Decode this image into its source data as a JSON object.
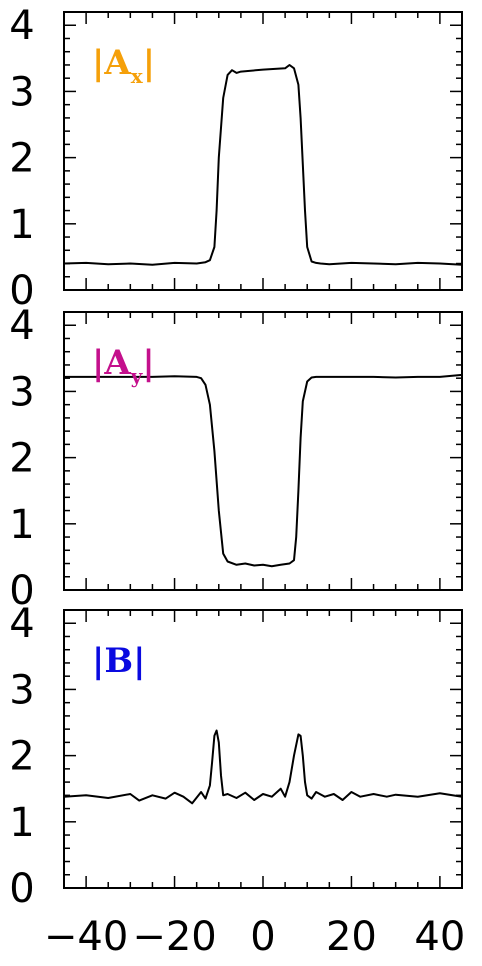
{
  "chart_data": [
    {
      "type": "line",
      "label_main": "|A",
      "label_sub": "x",
      "label_close": "|",
      "label_color": "#f5a00a",
      "ylim": [
        0,
        4.2
      ],
      "xlim": [
        -45,
        45
      ],
      "yticks": [
        "0",
        "1",
        "2",
        "3",
        "4"
      ],
      "series": [
        {
          "color": "#000000",
          "x": [
            -45,
            -40,
            -35,
            -30,
            -25,
            -20,
            -15,
            -13,
            -12,
            -11,
            -10.5,
            -10,
            -9,
            -8,
            -7,
            -6,
            -5,
            0,
            5,
            6,
            7,
            8,
            8.5,
            9,
            9.5,
            10,
            11,
            12,
            13,
            15,
            20,
            25,
            30,
            35,
            40,
            45
          ],
          "y": [
            0.4,
            0.41,
            0.39,
            0.4,
            0.38,
            0.41,
            0.4,
            0.42,
            0.45,
            0.65,
            1.2,
            2.0,
            2.9,
            3.25,
            3.32,
            3.28,
            3.3,
            3.33,
            3.35,
            3.4,
            3.35,
            3.1,
            2.6,
            1.9,
            1.2,
            0.65,
            0.43,
            0.41,
            0.4,
            0.39,
            0.41,
            0.4,
            0.39,
            0.41,
            0.4,
            0.38
          ]
        }
      ]
    },
    {
      "type": "line",
      "label_main": "|A",
      "label_sub": "y",
      "label_close": "|",
      "label_color": "#c4108c",
      "ylim": [
        0,
        4.2
      ],
      "xlim": [
        -45,
        45
      ],
      "yticks": [
        "0",
        "1",
        "2",
        "3",
        "4"
      ],
      "series": [
        {
          "color": "#000000",
          "x": [
            -45,
            -40,
            -35,
            -30,
            -25,
            -20,
            -15,
            -14,
            -13,
            -12,
            -11,
            -10,
            -9,
            -8,
            -6,
            -4,
            -2,
            0,
            2,
            4,
            6,
            7,
            7.5,
            8,
            8.5,
            9,
            10,
            11,
            12,
            15,
            20,
            25,
            30,
            35,
            40,
            45
          ],
          "y": [
            3.22,
            3.22,
            3.22,
            3.22,
            3.22,
            3.23,
            3.22,
            3.2,
            3.1,
            2.8,
            2.1,
            1.2,
            0.55,
            0.43,
            0.38,
            0.4,
            0.37,
            0.38,
            0.36,
            0.38,
            0.4,
            0.45,
            0.8,
            1.5,
            2.3,
            2.85,
            3.15,
            3.21,
            3.22,
            3.22,
            3.22,
            3.22,
            3.21,
            3.22,
            3.22,
            3.25
          ]
        }
      ]
    },
    {
      "type": "line",
      "label_main": "|B|",
      "label_sub": "",
      "label_close": "",
      "label_color": "#0a0ae0",
      "ylim": [
        0,
        4.2
      ],
      "xlim": [
        -45,
        45
      ],
      "yticks": [
        "0",
        "1",
        "2",
        "3",
        "4"
      ],
      "series": [
        {
          "color": "#000000",
          "x": [
            -45,
            -40,
            -35,
            -30,
            -28,
            -25,
            -22,
            -20,
            -18,
            -16,
            -14,
            -13,
            -12,
            -11.5,
            -11,
            -10.5,
            -10,
            -9.5,
            -9,
            -8,
            -6,
            -4,
            -2,
            0,
            2,
            4,
            5,
            6,
            7,
            8,
            8.5,
            9,
            9.5,
            10,
            11,
            12,
            14,
            16,
            18,
            20,
            22,
            25,
            28,
            30,
            35,
            40,
            45
          ],
          "y": [
            1.38,
            1.4,
            1.36,
            1.42,
            1.32,
            1.4,
            1.35,
            1.44,
            1.38,
            1.28,
            1.45,
            1.35,
            1.55,
            1.9,
            2.3,
            2.38,
            2.2,
            1.7,
            1.4,
            1.42,
            1.36,
            1.44,
            1.33,
            1.42,
            1.38,
            1.5,
            1.38,
            1.6,
            2.0,
            2.32,
            2.3,
            2.0,
            1.6,
            1.4,
            1.35,
            1.45,
            1.38,
            1.42,
            1.33,
            1.45,
            1.38,
            1.42,
            1.38,
            1.41,
            1.38,
            1.43,
            1.38
          ]
        }
      ]
    }
  ],
  "xticks": [
    "-40",
    "-20",
    "0",
    "20",
    "40"
  ],
  "xtick_values": [
    -40,
    -20,
    0,
    20,
    40
  ]
}
